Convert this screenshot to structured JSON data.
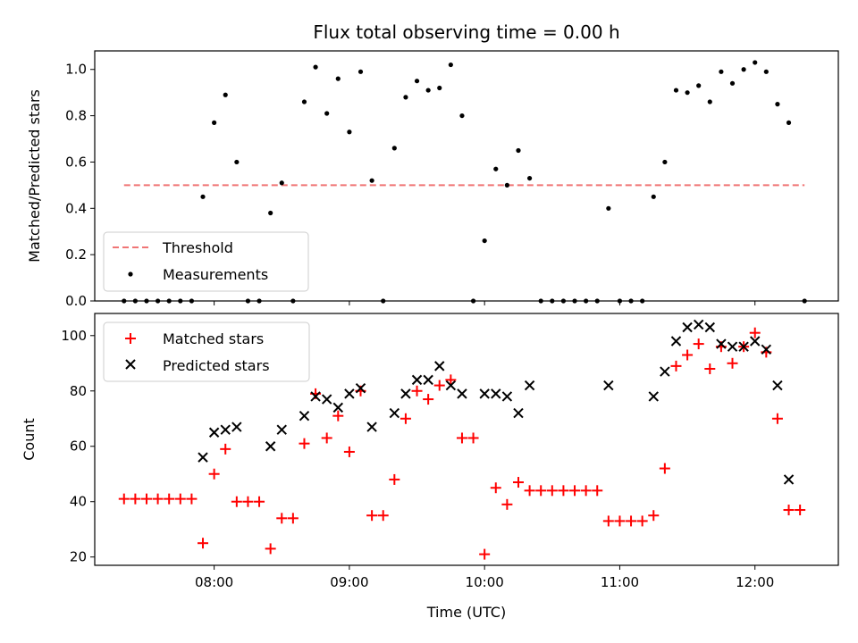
{
  "chart_data": [
    {
      "type": "scatter",
      "title": "Flux total observing time = 0.00 h",
      "xlabel": "",
      "ylabel": "Matched/Predicted stars",
      "ylim": [
        0,
        1.08
      ],
      "yticks": [
        "0.0",
        "0.2",
        "0.4",
        "0.6",
        "0.8",
        "1.0"
      ],
      "grid": false,
      "legend_position": "lower-left",
      "threshold": {
        "name": "Threshold",
        "value": 0.5,
        "x_start": "07:20",
        "x_end": "12:22",
        "color": "#f07575",
        "style": "dashed"
      },
      "series": [
        {
          "name": "Measurements",
          "color": "#000000",
          "marker": "dot",
          "points": [
            [
              "07:20",
              0
            ],
            [
              "07:25",
              0
            ],
            [
              "07:30",
              0
            ],
            [
              "07:35",
              0
            ],
            [
              "07:40",
              0
            ],
            [
              "07:45",
              0
            ],
            [
              "07:50",
              0
            ],
            [
              "07:55",
              0.45
            ],
            [
              "08:00",
              0.77
            ],
            [
              "08:05",
              0.89
            ],
            [
              "08:10",
              0.6
            ],
            [
              "08:15",
              0
            ],
            [
              "08:20",
              0
            ],
            [
              "08:25",
              0.38
            ],
            [
              "08:30",
              0.51
            ],
            [
              "08:35",
              0
            ],
            [
              "08:40",
              0.86
            ],
            [
              "08:45",
              1.01
            ],
            [
              "08:50",
              0.81
            ],
            [
              "08:55",
              0.96
            ],
            [
              "09:00",
              0.73
            ],
            [
              "09:05",
              0.99
            ],
            [
              "09:10",
              0.52
            ],
            [
              "09:15",
              0
            ],
            [
              "09:20",
              0.66
            ],
            [
              "09:25",
              0.88
            ],
            [
              "09:30",
              0.95
            ],
            [
              "09:35",
              0.91
            ],
            [
              "09:40",
              0.92
            ],
            [
              "09:45",
              1.02
            ],
            [
              "09:50",
              0.8
            ],
            [
              "09:55",
              0
            ],
            [
              "10:00",
              0.26
            ],
            [
              "10:05",
              0.57
            ],
            [
              "10:10",
              0.5
            ],
            [
              "10:15",
              0.65
            ],
            [
              "10:20",
              0.53
            ],
            [
              "10:25",
              0
            ],
            [
              "10:30",
              0
            ],
            [
              "10:35",
              0
            ],
            [
              "10:40",
              0
            ],
            [
              "10:45",
              0
            ],
            [
              "10:50",
              0
            ],
            [
              "10:55",
              0.4
            ],
            [
              "11:00",
              0
            ],
            [
              "11:05",
              0
            ],
            [
              "11:10",
              0
            ],
            [
              "11:15",
              0.45
            ],
            [
              "11:20",
              0.6
            ],
            [
              "11:25",
              0.91
            ],
            [
              "11:30",
              0.9
            ],
            [
              "11:35",
              0.93
            ],
            [
              "11:40",
              0.86
            ],
            [
              "11:45",
              0.99
            ],
            [
              "11:50",
              0.94
            ],
            [
              "11:55",
              1.0
            ],
            [
              "12:00",
              1.03
            ],
            [
              "12:05",
              0.99
            ],
            [
              "12:10",
              0.85
            ],
            [
              "12:15",
              0.77
            ],
            [
              "12:22",
              0
            ]
          ]
        }
      ]
    },
    {
      "type": "scatter",
      "title": "",
      "xlabel": "Time (UTC)",
      "ylabel": "Count",
      "ylim": [
        17,
        108
      ],
      "yticks": [
        "20",
        "40",
        "60",
        "80",
        "100"
      ],
      "xlim": [
        "07:07",
        "12:37"
      ],
      "xticks": [
        "08:00",
        "09:00",
        "10:00",
        "11:00",
        "12:00"
      ],
      "grid": false,
      "legend_position": "top-left",
      "series": [
        {
          "name": "Matched stars",
          "color": "#ff0000",
          "marker": "plus",
          "points": [
            [
              "07:20",
              41
            ],
            [
              "07:25",
              41
            ],
            [
              "07:30",
              41
            ],
            [
              "07:35",
              41
            ],
            [
              "07:40",
              41
            ],
            [
              "07:45",
              41
            ],
            [
              "07:50",
              41
            ],
            [
              "07:55",
              25
            ],
            [
              "08:00",
              50
            ],
            [
              "08:05",
              59
            ],
            [
              "08:10",
              40
            ],
            [
              "08:15",
              40
            ],
            [
              "08:20",
              40
            ],
            [
              "08:25",
              23
            ],
            [
              "08:30",
              34
            ],
            [
              "08:35",
              34
            ],
            [
              "08:40",
              61
            ],
            [
              "08:45",
              79
            ],
            [
              "08:50",
              63
            ],
            [
              "08:55",
              71
            ],
            [
              "09:00",
              58
            ],
            [
              "09:05",
              80
            ],
            [
              "09:10",
              35
            ],
            [
              "09:15",
              35
            ],
            [
              "09:20",
              48
            ],
            [
              "09:25",
              70
            ],
            [
              "09:30",
              80
            ],
            [
              "09:35",
              77
            ],
            [
              "09:40",
              82
            ],
            [
              "09:45",
              84
            ],
            [
              "09:50",
              63
            ],
            [
              "09:55",
              63
            ],
            [
              "10:00",
              21
            ],
            [
              "10:05",
              45
            ],
            [
              "10:10",
              39
            ],
            [
              "10:15",
              47
            ],
            [
              "10:20",
              44
            ],
            [
              "10:25",
              44
            ],
            [
              "10:30",
              44
            ],
            [
              "10:35",
              44
            ],
            [
              "10:40",
              44
            ],
            [
              "10:45",
              44
            ],
            [
              "10:50",
              44
            ],
            [
              "10:55",
              33
            ],
            [
              "11:00",
              33
            ],
            [
              "11:05",
              33
            ],
            [
              "11:10",
              33
            ],
            [
              "11:15",
              35
            ],
            [
              "11:20",
              52
            ],
            [
              "11:25",
              89
            ],
            [
              "11:30",
              93
            ],
            [
              "11:35",
              97
            ],
            [
              "11:40",
              88
            ],
            [
              "11:45",
              96
            ],
            [
              "11:50",
              90
            ],
            [
              "11:55",
              96
            ],
            [
              "12:00",
              101
            ],
            [
              "12:05",
              94
            ],
            [
              "12:10",
              70
            ],
            [
              "12:15",
              37
            ],
            [
              "12:20",
              37
            ]
          ]
        },
        {
          "name": "Predicted stars",
          "color": "#000000",
          "marker": "x",
          "points": [
            [
              "07:55",
              56
            ],
            [
              "08:00",
              65
            ],
            [
              "08:05",
              66
            ],
            [
              "08:10",
              67
            ],
            [
              "08:25",
              60
            ],
            [
              "08:30",
              66
            ],
            [
              "08:40",
              71
            ],
            [
              "08:45",
              78
            ],
            [
              "08:50",
              77
            ],
            [
              "08:55",
              74
            ],
            [
              "09:00",
              79
            ],
            [
              "09:05",
              81
            ],
            [
              "09:10",
              67
            ],
            [
              "09:20",
              72
            ],
            [
              "09:25",
              79
            ],
            [
              "09:30",
              84
            ],
            [
              "09:35",
              84
            ],
            [
              "09:40",
              89
            ],
            [
              "09:45",
              82
            ],
            [
              "09:50",
              79
            ],
            [
              "10:00",
              79
            ],
            [
              "10:05",
              79
            ],
            [
              "10:10",
              78
            ],
            [
              "10:15",
              72
            ],
            [
              "10:20",
              82
            ],
            [
              "10:55",
              82
            ],
            [
              "11:15",
              78
            ],
            [
              "11:20",
              87
            ],
            [
              "11:25",
              98
            ],
            [
              "11:30",
              103
            ],
            [
              "11:35",
              104
            ],
            [
              "11:40",
              103
            ],
            [
              "11:45",
              97
            ],
            [
              "11:50",
              96
            ],
            [
              "11:55",
              96
            ],
            [
              "12:00",
              98
            ],
            [
              "12:05",
              95
            ],
            [
              "12:10",
              82
            ],
            [
              "12:15",
              48
            ]
          ]
        }
      ]
    }
  ]
}
